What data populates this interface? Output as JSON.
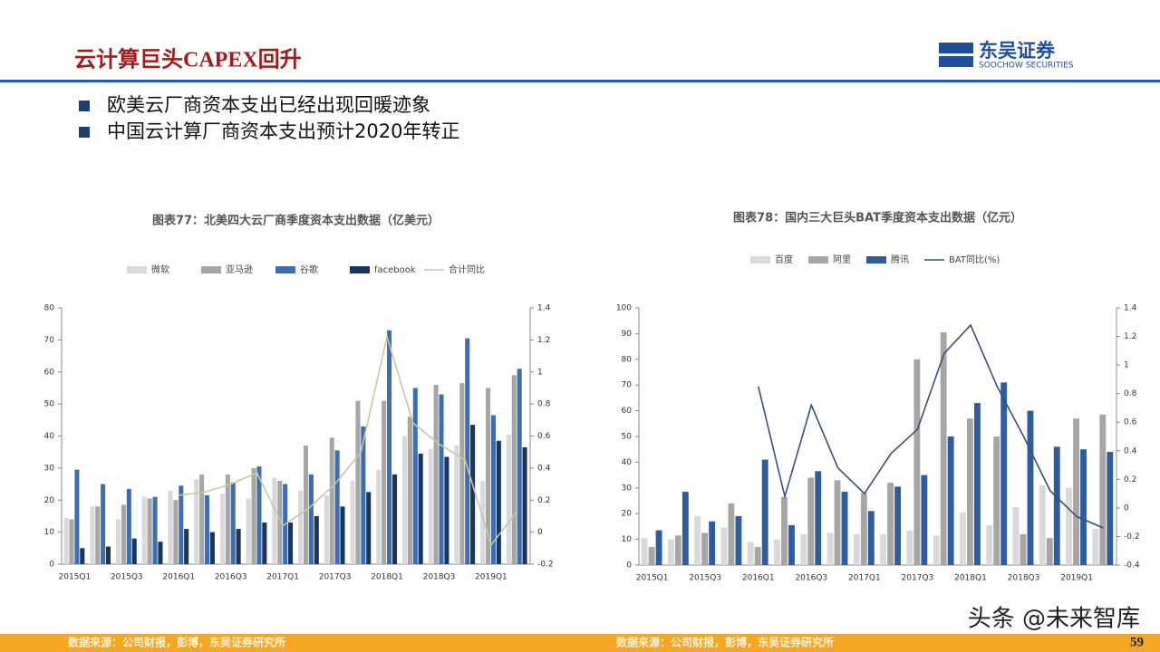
{
  "header": {
    "title": "云计算巨头CAPEX回升",
    "logo": {
      "name": "东吴证券",
      "subtitle": "SOOCHOW SECURITIES"
    }
  },
  "bullets": [
    "欧美云厂商资本支出已经出现回暖迹象",
    "中国云计算厂商资本支出预计2020年转正"
  ],
  "footer": {
    "page": "59"
  },
  "watermark": "头条 @未来智库",
  "chart_data": [
    {
      "type": "bar",
      "title": "图表77：北美四大云厂商季度资本支出数据（亿美元）",
      "source": "数据来源：公司财报，彭博，东吴证券研究所",
      "categories": [
        "2015Q1",
        null,
        "2015Q3",
        null,
        "2016Q1",
        null,
        "2016Q3",
        null,
        "2017Q1",
        null,
        "2017Q3",
        null,
        "2018Q1",
        null,
        "2018Q3",
        null,
        "2019Q1",
        null
      ],
      "series": [
        {
          "name": "微软",
          "color": "#d9d9d9",
          "values": [
            14.5,
            18,
            14,
            21,
            23,
            26.5,
            22,
            20.5,
            27,
            23,
            21.5,
            26,
            29.5,
            40,
            36,
            37,
            26,
            40.5
          ]
        },
        {
          "name": "亚马逊",
          "color": "#a6a6a6",
          "values": [
            14,
            18,
            18.5,
            20.5,
            20,
            28,
            28,
            30,
            26,
            37,
            39.5,
            51,
            51,
            46,
            56,
            56.5,
            55,
            59
          ]
        },
        {
          "name": "谷歌",
          "color": "#3e6eb0",
          "values": [
            29.5,
            25,
            23.5,
            21,
            24.5,
            21.5,
            25.5,
            30.5,
            25,
            28,
            35.5,
            43,
            73,
            55,
            53,
            70.5,
            46.5,
            61
          ]
        },
        {
          "name": "facebook",
          "color": "#17375e",
          "values": [
            5,
            5.5,
            8,
            7,
            11,
            10,
            11,
            13,
            13,
            15,
            18,
            22.5,
            28,
            34.5,
            33.5,
            43.5,
            38.5,
            36.5
          ]
        },
        {
          "name": "合计同比",
          "color": "#c8c8a0",
          "axis": "y2",
          "values": [
            null,
            null,
            null,
            null,
            0.23,
            0.25,
            0.3,
            0.37,
            0.04,
            0.15,
            0.3,
            0.5,
            1.22,
            0.68,
            0.55,
            0.45,
            -0.08,
            0.13
          ]
        }
      ],
      "ylim": [
        0,
        80
      ],
      "yticks": [
        0,
        10,
        20,
        30,
        40,
        50,
        60,
        70,
        80
      ],
      "y2lim": [
        -0.2,
        1.4
      ],
      "y2ticks": [
        -0.2,
        0,
        0.2,
        0.4,
        0.6,
        0.8,
        1,
        1.2,
        1.4
      ]
    },
    {
      "type": "bar",
      "title": "图表78：国内三大巨头BAT季度资本支出数据（亿元）",
      "source": "数据来源：公司财报，彭博，东吴证券研究所",
      "categories": [
        "2015Q1",
        null,
        "2015Q3",
        null,
        "2016Q1",
        null,
        "2016Q3",
        null,
        "2017Q1",
        null,
        "2017Q3",
        null,
        "2018Q1",
        null,
        "2018Q3",
        null,
        "2019Q1",
        null
      ],
      "series": [
        {
          "name": "百度",
          "color": "#d9d9d9",
          "values": [
            10.5,
            10,
            19,
            14.5,
            9,
            10,
            12,
            12.5,
            12,
            12,
            13.5,
            11.5,
            20.5,
            15.5,
            22.5,
            31,
            30,
            14
          ]
        },
        {
          "name": "阿里",
          "color": "#a6a6a6",
          "values": [
            7,
            11.5,
            12.5,
            24,
            7,
            26.5,
            34,
            33,
            28,
            32,
            80,
            90.5,
            57,
            50,
            12,
            10.5,
            57,
            58.5
          ]
        },
        {
          "name": "腾讯",
          "color": "#2e5c9e",
          "values": [
            13.5,
            28.5,
            17,
            19,
            41,
            15.5,
            36.5,
            28.5,
            21,
            30.5,
            35,
            50,
            63,
            71,
            60,
            46,
            45,
            44
          ]
        },
        {
          "name": "BAT同比(%)",
          "color": "#3a4f7a",
          "axis": "y2",
          "values": [
            null,
            null,
            null,
            null,
            0.85,
            0.08,
            0.72,
            0.28,
            0.1,
            0.38,
            0.55,
            1.08,
            1.28,
            0.85,
            0.5,
            0.12,
            -0.06,
            -0.14
          ]
        }
      ],
      "ylim": [
        0,
        100
      ],
      "yticks": [
        0,
        10,
        20,
        30,
        40,
        50,
        60,
        70,
        80,
        90,
        100
      ],
      "y2lim": [
        -0.4,
        1.4
      ],
      "y2ticks": [
        -0.4,
        -0.2,
        0,
        0.2,
        0.4,
        0.6,
        0.8,
        1,
        1.2,
        1.4
      ]
    }
  ]
}
